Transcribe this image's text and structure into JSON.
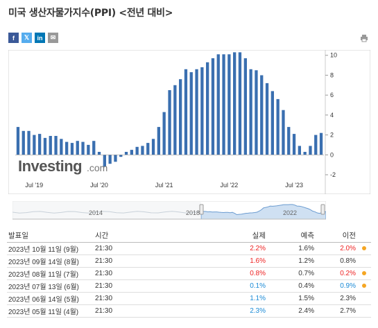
{
  "page": {
    "title": "미국 생산자물가지수(PPI) <전년 대비>"
  },
  "share": {
    "facebook": "f",
    "twitter": "𝕏",
    "linkedin": "in",
    "email": "✉"
  },
  "colors": {
    "bar": "#3a6fb0",
    "facebook": "#3b5998",
    "twitter": "#55acee",
    "linkedin": "#0077b5",
    "email": "#999999",
    "nav_fill": "#cfe0f2",
    "up": "#e22222",
    "down": "#1a8ad6",
    "dot": "#f5a623"
  },
  "chart_data": {
    "type": "bar",
    "watermark": "Investing.com",
    "x_tick_labels": [
      "Jul '19",
      "Jul '20",
      "Jul '21",
      "Jul '22",
      "Jul '23"
    ],
    "y_ticks": [
      10,
      8,
      6,
      4,
      2,
      0,
      -2
    ],
    "ylim": [
      -2,
      10.4
    ],
    "values": [
      2.8,
      2.4,
      2.4,
      2.0,
      2.1,
      1.7,
      1.9,
      1.9,
      1.6,
      1.3,
      1.2,
      1.4,
      1.3,
      1.0,
      1.4,
      0.3,
      -1.2,
      -0.9,
      -0.7,
      -0.2,
      0.3,
      0.5,
      0.8,
      0.9,
      1.2,
      1.6,
      2.8,
      4.3,
      6.5,
      7.0,
      7.6,
      8.6,
      8.3,
      8.6,
      8.8,
      9.3,
      9.7,
      10.1,
      10.1,
      10.1,
      10.3,
      10.3,
      9.7,
      8.6,
      8.5,
      8.0,
      7.2,
      6.4,
      5.6,
      4.5,
      2.8,
      2.1,
      0.9,
      0.3,
      0.9,
      2.0,
      2.2
    ],
    "navigator_labels": [
      "2014",
      "2018",
      "2022"
    ]
  },
  "table": {
    "headers": {
      "date": "발표일",
      "time": "시간",
      "actual": "실제",
      "forecast": "예측",
      "previous": "이전"
    },
    "rows": [
      {
        "date": "2023년 10월 11일 (9월)",
        "time": "21:30",
        "actual": "2.2%",
        "actual_color": "red",
        "forecast": "1.6%",
        "previous": "2.0%",
        "previous_color": "red",
        "dot": true
      },
      {
        "date": "2023년 09월 14일 (8월)",
        "time": "21:30",
        "actual": "1.6%",
        "actual_color": "red",
        "forecast": "1.2%",
        "previous": "0.8%",
        "previous_color": "",
        "dot": false
      },
      {
        "date": "2023년 08월 11일 (7월)",
        "time": "21:30",
        "actual": "0.8%",
        "actual_color": "red",
        "forecast": "0.7%",
        "previous": "0.2%",
        "previous_color": "red",
        "dot": true
      },
      {
        "date": "2023년 07월 13일 (6월)",
        "time": "21:30",
        "actual": "0.1%",
        "actual_color": "blue",
        "forecast": "0.4%",
        "previous": "0.9%",
        "previous_color": "blue",
        "dot": true
      },
      {
        "date": "2023년 06월 14일 (5월)",
        "time": "21:30",
        "actual": "1.1%",
        "actual_color": "blue",
        "forecast": "1.5%",
        "previous": "2.3%",
        "previous_color": "",
        "dot": false
      },
      {
        "date": "2023년 05월 11일 (4월)",
        "time": "21:30",
        "actual": "2.3%",
        "actual_color": "blue",
        "forecast": "2.4%",
        "previous": "2.7%",
        "previous_color": "",
        "dot": false
      }
    ]
  }
}
